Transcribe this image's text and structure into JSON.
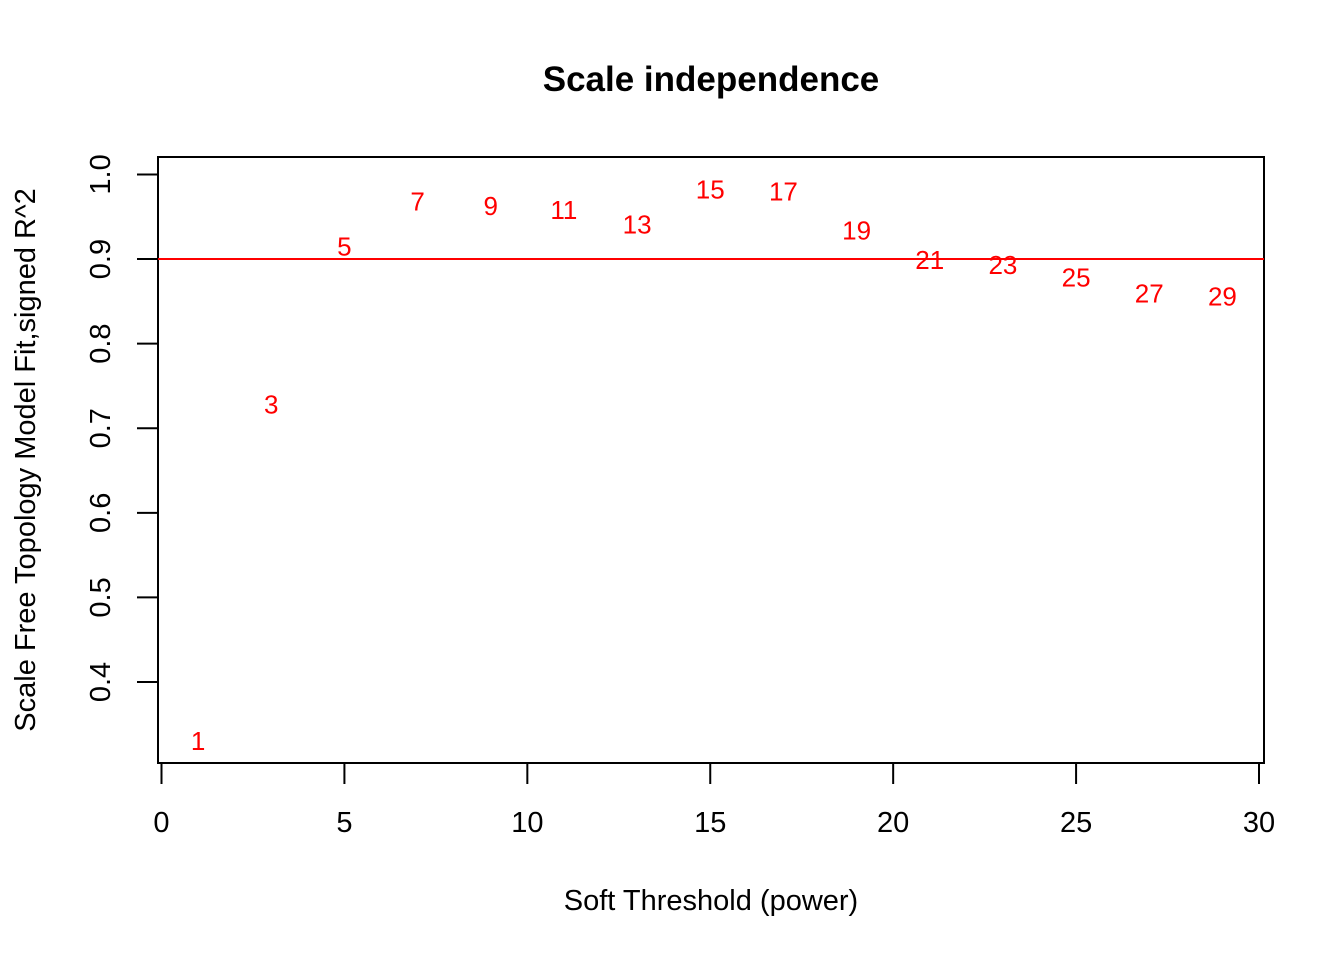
{
  "chart_data": {
    "type": "scatter",
    "title": "Scale independence",
    "xlabel": "Soft Threshold (power)",
    "ylabel": "Scale Free Topology Model Fit,signed R^2",
    "xlim": [
      0,
      30
    ],
    "ylim": [
      0.31,
      1.01
    ],
    "xticks": [
      0,
      5,
      10,
      15,
      20,
      25,
      30
    ],
    "yticks": [
      0.4,
      0.5,
      0.6,
      0.7,
      0.8,
      0.9,
      1.0
    ],
    "ytick_labels": [
      "0.4",
      "0.5",
      "0.6",
      "0.7",
      "0.8",
      "0.9",
      "1.0"
    ],
    "grid": false,
    "point_color": "#ff0000",
    "hline": {
      "y": 0.9,
      "color": "#ff0000"
    },
    "points": [
      {
        "x": 1,
        "y": 0.33,
        "label": "1"
      },
      {
        "x": 3,
        "y": 0.728,
        "label": "3"
      },
      {
        "x": 5,
        "y": 0.915,
        "label": "5"
      },
      {
        "x": 7,
        "y": 0.968,
        "label": "7"
      },
      {
        "x": 9,
        "y": 0.963,
        "label": "9"
      },
      {
        "x": 11,
        "y": 0.958,
        "label": "11"
      },
      {
        "x": 13,
        "y": 0.941,
        "label": "13"
      },
      {
        "x": 15,
        "y": 0.982,
        "label": "15"
      },
      {
        "x": 17,
        "y": 0.98,
        "label": "17"
      },
      {
        "x": 19,
        "y": 0.934,
        "label": "19"
      },
      {
        "x": 21,
        "y": 0.899,
        "label": "21"
      },
      {
        "x": 23,
        "y": 0.893,
        "label": "23"
      },
      {
        "x": 25,
        "y": 0.878,
        "label": "25"
      },
      {
        "x": 27,
        "y": 0.859,
        "label": "27"
      },
      {
        "x": 29,
        "y": 0.856,
        "label": "29"
      }
    ]
  }
}
